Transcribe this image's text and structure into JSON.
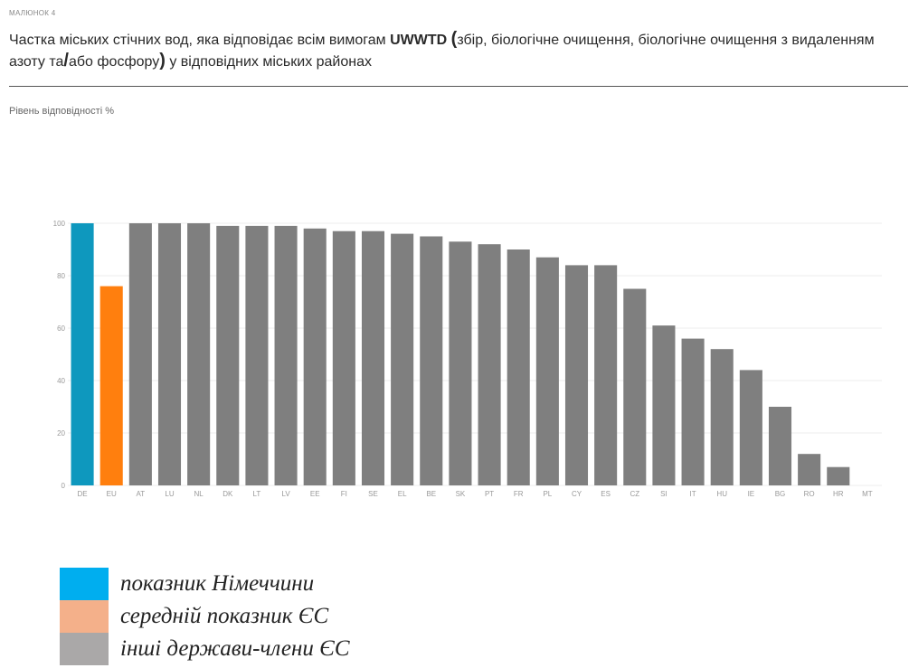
{
  "figure": {
    "label": "МАЛЮНОК 4",
    "title_part1": "Частка міських стічних вод, яка відповідає всім вимогам ",
    "title_bold": "UWWTD",
    "title_open_paren": "(",
    "title_part2": "збір, біологічне очищення, біологічне очищення з видаленням азоту та",
    "title_slash": "/",
    "title_part3": "або фосфору",
    "title_close_paren": ")",
    "title_part4": " у відповідних міських районах"
  },
  "chart_data": {
    "type": "bar",
    "ylabel": "Рівень відповідності %",
    "xlabel": "",
    "ylim": [
      0,
      100
    ],
    "yticks": [
      0,
      20,
      40,
      60,
      80,
      100
    ],
    "grid": true,
    "categories": [
      "DE",
      "EU",
      "AT",
      "LU",
      "NL",
      "DK",
      "LT",
      "LV",
      "EE",
      "FI",
      "SE",
      "EL",
      "BE",
      "SK",
      "PT",
      "FR",
      "PL",
      "CY",
      "ES",
      "CZ",
      "SI",
      "IT",
      "HU",
      "IE",
      "BG",
      "RO",
      "HR",
      "MT"
    ],
    "values": [
      100,
      76,
      100,
      100,
      100,
      99,
      99,
      99,
      98,
      97,
      97,
      96,
      95,
      93,
      92,
      90,
      87,
      84,
      84,
      75,
      61,
      56,
      52,
      44,
      30,
      12,
      7,
      0
    ],
    "bar_colors": [
      "#0e98be",
      "#ff7f0e",
      "#7f7f7f",
      "#7f7f7f",
      "#7f7f7f",
      "#7f7f7f",
      "#7f7f7f",
      "#7f7f7f",
      "#7f7f7f",
      "#7f7f7f",
      "#7f7f7f",
      "#7f7f7f",
      "#7f7f7f",
      "#7f7f7f",
      "#7f7f7f",
      "#7f7f7f",
      "#7f7f7f",
      "#7f7f7f",
      "#7f7f7f",
      "#7f7f7f",
      "#7f7f7f",
      "#7f7f7f",
      "#7f7f7f",
      "#7f7f7f",
      "#7f7f7f",
      "#7f7f7f",
      "#7f7f7f",
      "#7f7f7f"
    ]
  },
  "legend": [
    {
      "label": "показник Німеччини",
      "color": "#00aeef"
    },
    {
      "label": "середній показник ЄС",
      "color": "#f4b08a"
    },
    {
      "label": "інші держави-члени ЄС",
      "color": "#aaa8a8"
    }
  ]
}
